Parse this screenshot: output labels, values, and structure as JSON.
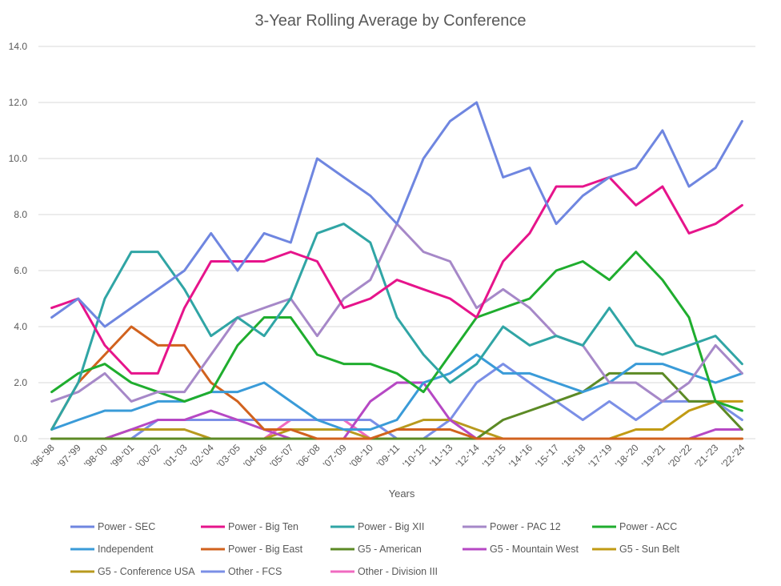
{
  "chart_data": {
    "type": "line",
    "title": "3-Year Rolling Average by Conference",
    "xlabel": "Years",
    "ylabel": "",
    "ylim": [
      0,
      14
    ],
    "yticks": [
      "0.0",
      "2.0",
      "4.0",
      "6.0",
      "8.0",
      "10.0",
      "12.0",
      "14.0"
    ],
    "grid": true,
    "legend_position": "bottom",
    "categories": [
      "'96-'98",
      "'97-'99",
      "'98-'00",
      "'99-'01",
      "'00-'02",
      "'01-'03",
      "'02-'04",
      "'03-'05",
      "'04-'06",
      "'05-'07",
      "'06-'08",
      "'07-'09",
      "'08-'10",
      "'09-'11",
      "'10-'12",
      "'11-'13",
      "'12-'14",
      "'13-'15",
      "'14-'16",
      "'15-'17",
      "'16-'18",
      "'17-'19",
      "'18-'20",
      "'19-'21",
      "'20-'22",
      "'21-'23",
      "'22-'24"
    ],
    "series": [
      {
        "name": "Power - SEC",
        "color": "#6f86e0",
        "values": [
          4.33,
          5.0,
          4.0,
          4.67,
          5.33,
          6.0,
          7.33,
          6.0,
          7.33,
          7.0,
          10.0,
          9.33,
          8.67,
          7.67,
          10.0,
          11.33,
          12.0,
          9.33,
          9.67,
          7.67,
          8.67,
          9.33,
          9.67,
          11.0,
          9.0,
          9.67,
          11.33
        ]
      },
      {
        "name": "Power - Big Ten",
        "color": "#e6148b",
        "values": [
          4.67,
          5.0,
          3.33,
          2.33,
          2.33,
          4.67,
          6.33,
          6.33,
          6.33,
          6.67,
          6.33,
          4.67,
          5.0,
          5.67,
          5.33,
          5.0,
          4.33,
          6.33,
          7.33,
          9.0,
          9.0,
          9.33,
          8.33,
          9.0,
          7.33,
          7.67,
          8.33
        ]
      },
      {
        "name": "Power - Big XII",
        "color": "#30a5a5",
        "values": [
          0.33,
          2.0,
          5.0,
          6.67,
          6.67,
          5.33,
          3.67,
          4.33,
          3.67,
          5.0,
          7.33,
          7.67,
          7.0,
          4.33,
          3.0,
          2.0,
          2.67,
          4.0,
          3.33,
          3.67,
          3.33,
          4.67,
          3.33,
          3.0,
          3.33,
          3.67,
          2.67
        ]
      },
      {
        "name": "Power - PAC 12",
        "color": "#a688c8",
        "values": [
          1.33,
          1.67,
          2.33,
          1.33,
          1.67,
          1.67,
          3.0,
          4.33,
          4.67,
          5.0,
          3.67,
          5.0,
          5.67,
          7.67,
          6.67,
          6.33,
          4.67,
          5.33,
          4.67,
          3.67,
          3.33,
          2.0,
          2.0,
          1.33,
          2.0,
          3.33,
          2.33
        ]
      },
      {
        "name": "Power - ACC",
        "color": "#1fad2e",
        "values": [
          1.67,
          2.33,
          2.67,
          2.0,
          1.67,
          1.33,
          1.67,
          3.33,
          4.33,
          4.33,
          3.0,
          2.67,
          2.67,
          2.33,
          1.67,
          3.0,
          4.33,
          4.67,
          5.0,
          6.0,
          6.33,
          5.67,
          6.67,
          5.67,
          4.33,
          1.33,
          1.0
        ]
      },
      {
        "name": "Independent",
        "color": "#3a9bd8",
        "values": [
          0.33,
          0.67,
          1.0,
          1.0,
          1.33,
          1.33,
          1.67,
          1.67,
          2.0,
          1.33,
          0.67,
          0.33,
          0.33,
          0.67,
          2.0,
          2.33,
          3.0,
          2.33,
          2.33,
          2.0,
          1.67,
          2.0,
          2.67,
          2.67,
          2.33,
          2.0,
          2.33
        ]
      },
      {
        "name": "Power - Big East",
        "color": "#d1621e",
        "values": [
          0.33,
          2.0,
          3.0,
          4.0,
          3.33,
          3.33,
          2.0,
          1.33,
          0.33,
          0.33,
          0.0,
          0.0,
          0.0,
          0.33,
          0.33,
          0.33,
          0.0,
          0.0,
          0.0,
          0.0,
          0.0,
          0.0,
          0.0,
          0.0,
          0.0,
          0.0,
          0.0
        ]
      },
      {
        "name": "G5 - American",
        "color": "#5c8a25",
        "values": [
          0,
          0,
          0,
          0,
          0,
          0,
          0,
          0,
          0,
          0,
          0,
          0,
          0,
          0,
          0,
          0,
          0,
          0.67,
          1.0,
          1.33,
          1.67,
          2.33,
          2.33,
          2.33,
          1.33,
          1.33,
          0.33
        ]
      },
      {
        "name": "G5 - Mountain West",
        "color": "#b648c4",
        "values": [
          0,
          0,
          0,
          0.33,
          0.67,
          0.67,
          1.0,
          0.67,
          0.33,
          0.0,
          0.0,
          0.0,
          1.33,
          2.0,
          2.0,
          0.67,
          0.0,
          0.0,
          0.0,
          0.0,
          0.0,
          0.0,
          0.0,
          0.0,
          0.0,
          0.33,
          0.33
        ]
      },
      {
        "name": "G5 - Sun Belt",
        "color": "#c19b14",
        "values": [
          0,
          0,
          0,
          0,
          0,
          0,
          0,
          0,
          0,
          0,
          0,
          0,
          0,
          0,
          0,
          0,
          0,
          0,
          0,
          0,
          0,
          0,
          0.33,
          0.33,
          1.0,
          1.33,
          1.33
        ]
      },
      {
        "name": "G5 - Conference USA",
        "color": "#b89a1e",
        "values": [
          0,
          0,
          0,
          0.33,
          0.33,
          0.33,
          0.0,
          0.0,
          0.0,
          0.33,
          0.33,
          0.33,
          0.0,
          0.33,
          0.67,
          0.67,
          0.33,
          0.0,
          0.0,
          0.0,
          0.0,
          0.0,
          0.0,
          0.0,
          0.0,
          0.0,
          0.0
        ]
      },
      {
        "name": "Other - FCS",
        "color": "#7b8fe6",
        "values": [
          0,
          0,
          0,
          0,
          0.67,
          0.67,
          0.67,
          0.67,
          0.67,
          0.67,
          0.67,
          0.67,
          0.67,
          0.0,
          0.0,
          0.67,
          2.0,
          2.67,
          2.0,
          1.33,
          0.67,
          1.33,
          0.67,
          1.33,
          1.33,
          1.33,
          0.67
        ]
      },
      {
        "name": "Other - Division III",
        "color": "#f06ac0",
        "values": [
          0,
          0,
          0,
          0,
          0,
          0,
          0,
          0,
          0,
          0.67,
          0.67,
          0.67,
          0.0,
          0.0,
          0.0,
          0.0,
          0.0,
          0.0,
          0.0,
          0.0,
          0.0,
          0.0,
          0.0,
          0.0,
          0.0,
          0.0,
          0.0
        ]
      }
    ]
  }
}
